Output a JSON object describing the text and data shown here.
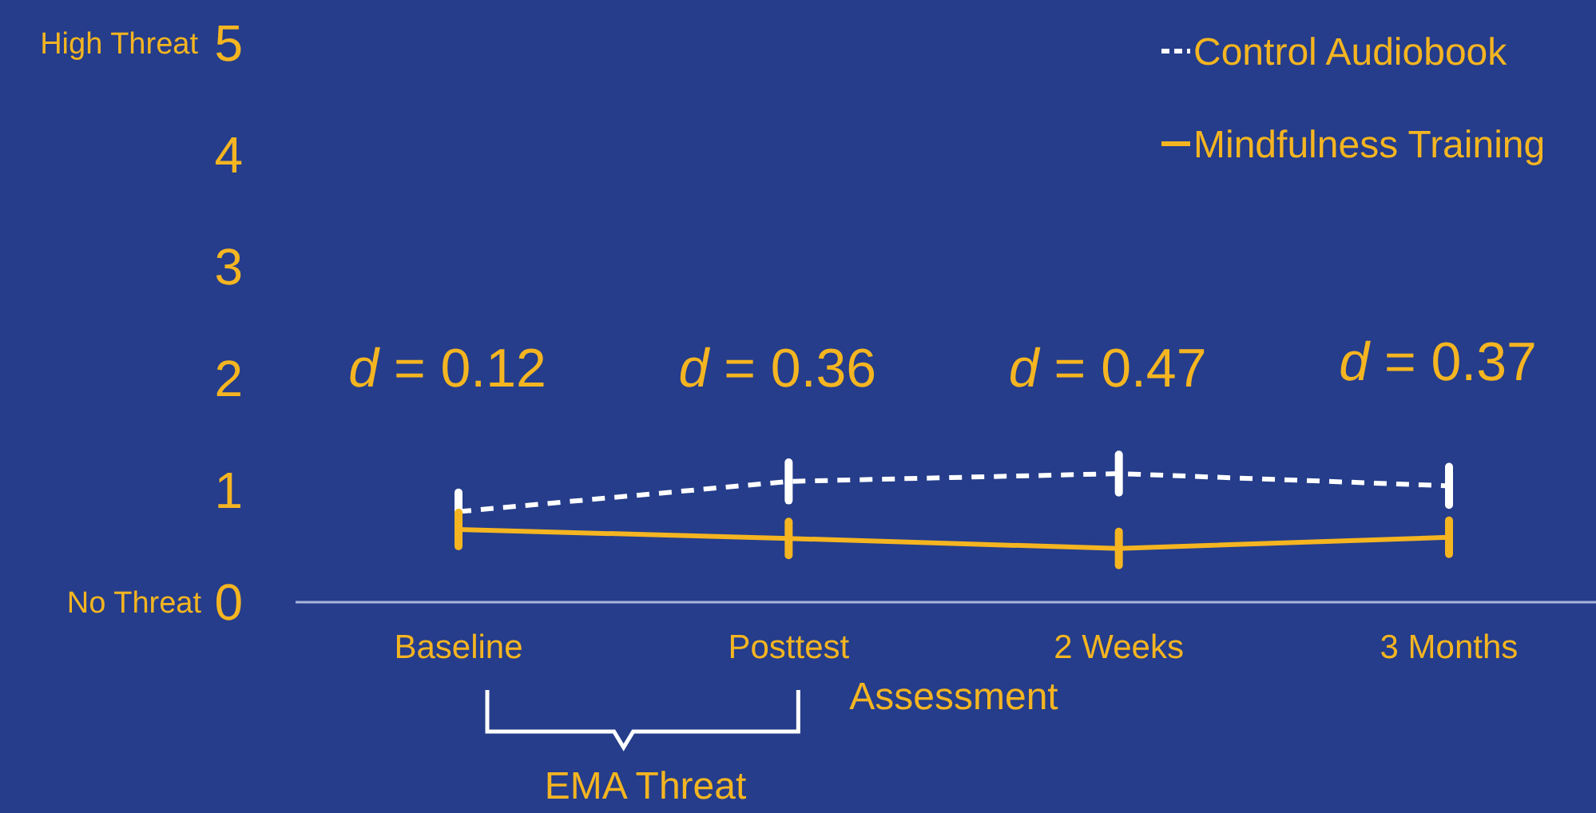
{
  "chart_data": {
    "type": "line",
    "xlabel": "Assessment",
    "categories": [
      "Baseline",
      "Posttest",
      "2 Weeks",
      "3 Months"
    ],
    "series": [
      {
        "name": "Control Audiobook",
        "color": "#ffffff",
        "line_style": "dashed",
        "values": [
          0.81,
          1.08,
          1.15,
          1.04
        ],
        "errors": [
          0.17,
          0.17,
          0.17,
          0.17
        ]
      },
      {
        "name": "Mindfulness Training",
        "color": "#f5b521",
        "line_style": "solid",
        "values": [
          0.65,
          0.57,
          0.48,
          0.58
        ],
        "errors": [
          0.15,
          0.15,
          0.15,
          0.15
        ]
      }
    ],
    "ylim": [
      0,
      5
    ],
    "yticks": [
      0,
      1,
      2,
      3,
      4,
      5
    ],
    "grid": false,
    "legend": "top right",
    "annotations": [
      "d = 0.12",
      "d = 0.36",
      "d = 0.47",
      "d = 0.37",
      "High Threat",
      "No Threat",
      "EMA Threat"
    ]
  }
}
